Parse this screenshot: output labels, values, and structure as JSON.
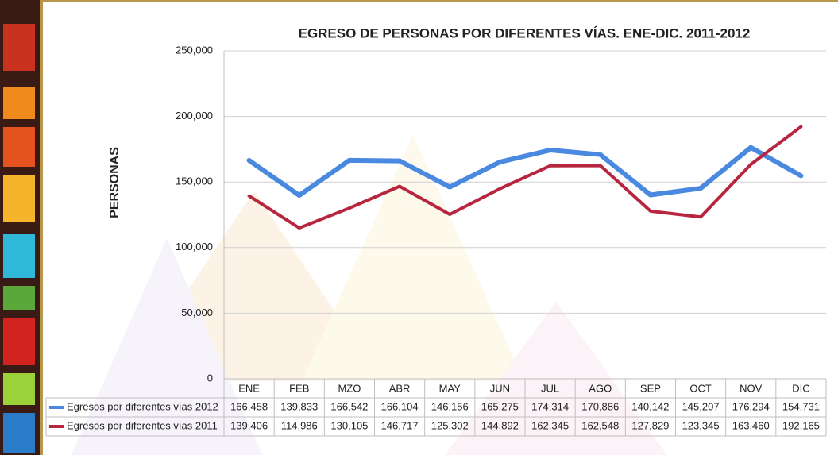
{
  "chart_data": {
    "type": "line",
    "title": "EGRESO DE PERSONAS POR DIFERENTES VÍAS. ENE-DIC. 2011-2012",
    "y_label": "PERSONAS",
    "categories": [
      "ENE",
      "FEB",
      "MZO",
      "ABR",
      "MAY",
      "JUN",
      "JUL",
      "AGO",
      "SEP",
      "OCT",
      "NOV",
      "DIC"
    ],
    "series": [
      {
        "name": "Egresos por diferentes vías 2012",
        "color": "#4a89e0",
        "values": [
          166458,
          139833,
          166542,
          166104,
          146156,
          165275,
          174314,
          170886,
          140142,
          145207,
          176294,
          154731
        ],
        "value_labels": [
          "166,458",
          "139,833",
          "166,542",
          "166,104",
          "146,156",
          "165,275",
          "174,314",
          "170,886",
          "140,142",
          "145,207",
          "176,294",
          "154,731"
        ]
      },
      {
        "name": "Egresos por diferentes vías 2011",
        "color": "#b8253f",
        "values": [
          139406,
          114986,
          130105,
          146717,
          125302,
          144892,
          162345,
          162548,
          127829,
          123345,
          163460,
          192165
        ],
        "value_labels": [
          "139,406",
          "114,986",
          "130,105",
          "146,717",
          "125,302",
          "144,892",
          "162,345",
          "162,548",
          "127,829",
          "123,345",
          "163,460",
          "192,165"
        ]
      }
    ],
    "ylim": [
      0,
      250000
    ],
    "yticks": [
      0,
      {
        "value": 50000,
        "label": "50,000"
      },
      {
        "value": 100000,
        "label": "100,000"
      },
      {
        "value": 150000,
        "label": "150,000"
      },
      {
        "value": 200000,
        "label": "200,000"
      },
      {
        "value": 250000,
        "label": "250,000"
      }
    ],
    "grid": true
  }
}
